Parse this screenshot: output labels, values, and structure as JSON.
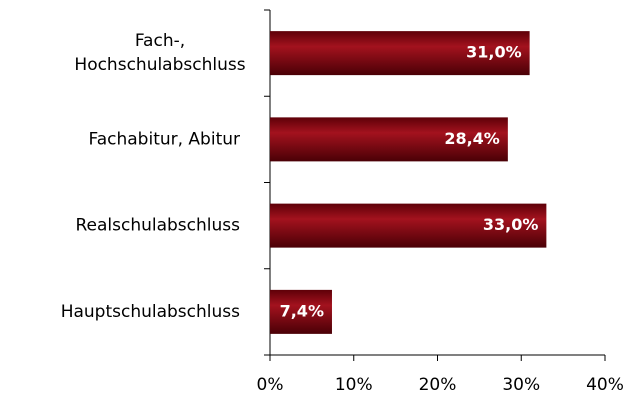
{
  "chart_data": {
    "type": "barh",
    "categories": [
      "Fach-,\nHochschulabschluss",
      "Fachabitur, Abitur",
      "Realschulabschluss",
      "Hauptschulabschluss"
    ],
    "values": [
      31.0,
      28.4,
      33.0,
      7.4
    ],
    "value_labels": [
      "31,0%",
      "28,4%",
      "33,0%",
      "7,4%"
    ],
    "color": "#8b0a14",
    "xlim": [
      0,
      40
    ],
    "xticks": [
      {
        "value": 0,
        "label": "0%"
      },
      {
        "value": 10,
        "label": "10%"
      },
      {
        "value": 20,
        "label": "20%"
      },
      {
        "value": 30,
        "label": "30%"
      },
      {
        "value": 40,
        "label": "40%"
      }
    ]
  }
}
